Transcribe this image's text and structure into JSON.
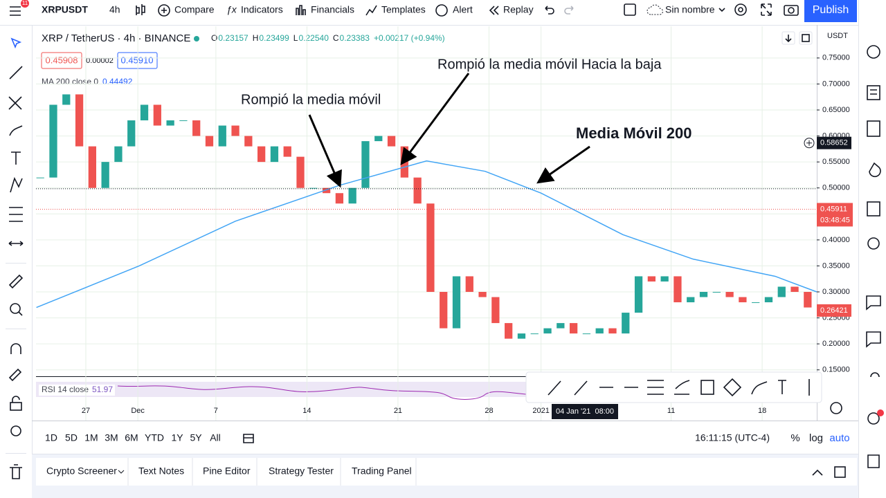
{
  "toolbar": {
    "badge": "11",
    "symbol": "XRPUSDT",
    "interval": "4h",
    "items": [
      "Compare",
      "Indicators",
      "Financials",
      "Templates",
      "Alert",
      "Replay"
    ],
    "layout_name": "Sin nombre",
    "publish": "Publish"
  },
  "legend": {
    "title": "XRP / TetherUS · 4h · BINANCE",
    "ohlc": [
      {
        "label": "O",
        "value": "0.23157"
      },
      {
        "label": "H",
        "value": "0.23499"
      },
      {
        "label": "L",
        "value": "0.22540"
      },
      {
        "label": "C",
        "value": "0.23383"
      }
    ],
    "change": "+0.00217 (+0.94%)",
    "bid": "0.45908",
    "spread": "0.00002",
    "ask": "0.45910",
    "ma_name": "MA 200 close 0",
    "ma_value": "0.44492",
    "rsi_name": "RSI 14 close",
    "rsi_value": "51.97"
  },
  "chart_data": {
    "type": "candlestick",
    "currency": "USDT",
    "x": [
      23.5,
      24.5,
      25.5,
      26.5,
      27.5,
      28.5,
      29.5,
      30.5,
      31.5,
      32.5,
      33.5,
      34.5,
      35.5,
      36.5,
      37.5,
      38.5,
      39.5,
      40.5,
      41.5,
      42.5,
      43.5,
      44.5,
      45.5,
      46.5,
      47.5,
      48.5,
      49.5,
      50.5,
      51.5,
      52.5,
      53.5,
      54.5,
      55.5,
      56.5,
      57.5,
      58.5,
      59.5,
      60.5,
      61.5,
      62.5,
      63.5,
      64.5,
      65.5,
      66.5,
      67.5,
      68.5,
      69.5,
      70.5,
      71.5,
      72.5,
      73.5,
      74.5,
      75.5,
      76.5,
      77.5,
      78.5,
      79.5,
      80.5,
      81.5,
      82.5
    ],
    "values": [
      0.52,
      0.66,
      0.68,
      0.58,
      0.5,
      0.55,
      0.58,
      0.63,
      0.66,
      0.62,
      0.63,
      0.63,
      0.6,
      0.58,
      0.62,
      0.6,
      0.58,
      0.55,
      0.58,
      0.56,
      0.5,
      0.5,
      0.49,
      0.47,
      0.5,
      0.59,
      0.6,
      0.58,
      0.52,
      0.47,
      0.3,
      0.23,
      0.33,
      0.3,
      0.29,
      0.24,
      0.21,
      0.22,
      0.22,
      0.23,
      0.24,
      0.22,
      0.22,
      0.23,
      0.22,
      0.26,
      0.33,
      0.32,
      0.33,
      0.28,
      0.29,
      0.3,
      0.3,
      0.29,
      0.28,
      0.28,
      0.29,
      0.31,
      0.3,
      0.27
    ],
    "up_color": "#26a69a",
    "down_color": "#ef5350",
    "ma": {
      "color": "#42a5f5",
      "x": [
        23.2,
        31.1,
        38.5,
        46.5,
        53.2,
        57.7,
        62,
        68.3,
        73.7,
        80,
        83.2
      ],
      "values": [
        0.27,
        0.35,
        0.436,
        0.505,
        0.552,
        0.532,
        0.49,
        0.41,
        0.363,
        0.33,
        0.3
      ]
    },
    "xlim": [
      23.17,
      83.2
    ],
    "xticks": [
      {
        "value": 27,
        "label": "27"
      },
      {
        "value": 31,
        "label": "Dec"
      },
      {
        "value": 37,
        "label": "7"
      },
      {
        "value": 44,
        "label": "14"
      },
      {
        "value": 51,
        "label": "21"
      },
      {
        "value": 58,
        "label": "28"
      },
      {
        "value": 62,
        "label": "2021"
      },
      {
        "value": 72,
        "label": "11"
      },
      {
        "value": 79,
        "label": "18"
      }
    ],
    "ylim": [
      0.139,
      0.811
    ],
    "yticks": [
      {
        "value": 0.15,
        "label": "0.15000"
      },
      {
        "value": 0.2,
        "label": "0.20000"
      },
      {
        "value": 0.25,
        "label": "0.25000"
      },
      {
        "value": 0.3,
        "label": "0.30000"
      },
      {
        "value": 0.35,
        "label": "0.35000"
      },
      {
        "value": 0.4,
        "label": "0.40000"
      },
      {
        "value": 0.45,
        "label": "0.45000"
      },
      {
        "value": 0.5,
        "label": "0.50000"
      },
      {
        "value": 0.55,
        "label": "0.55000"
      },
      {
        "value": 0.6,
        "label": "0.60000"
      },
      {
        "value": 0.65,
        "label": "0.65000"
      },
      {
        "value": 0.7,
        "label": "0.70000"
      },
      {
        "value": 0.75,
        "label": "0.75000"
      }
    ],
    "grid": true,
    "crosshair": {
      "price": 0.58652,
      "level": 0.4985,
      "time": "04 Jan '21  08:00"
    },
    "last_price": {
      "price": 0.45911,
      "countdown": "03:48:45"
    },
    "current_price": 0.26421,
    "annotations": [
      "Rompió la media móvil Hacia la baja",
      "Rompió la media móvil",
      "Media Móvil 200"
    ]
  },
  "bottom": {
    "ranges": [
      "1D",
      "5D",
      "1M",
      "3M",
      "6M",
      "YTD",
      "1Y",
      "5Y",
      "All"
    ],
    "clock": "16:11:15 (UTC-4)",
    "scale_opts": [
      "%",
      "log",
      "auto"
    ],
    "tabs": [
      "Crypto Screener",
      "Text Notes",
      "Pine Editor",
      "Strategy Tester",
      "Trading Panel"
    ]
  }
}
